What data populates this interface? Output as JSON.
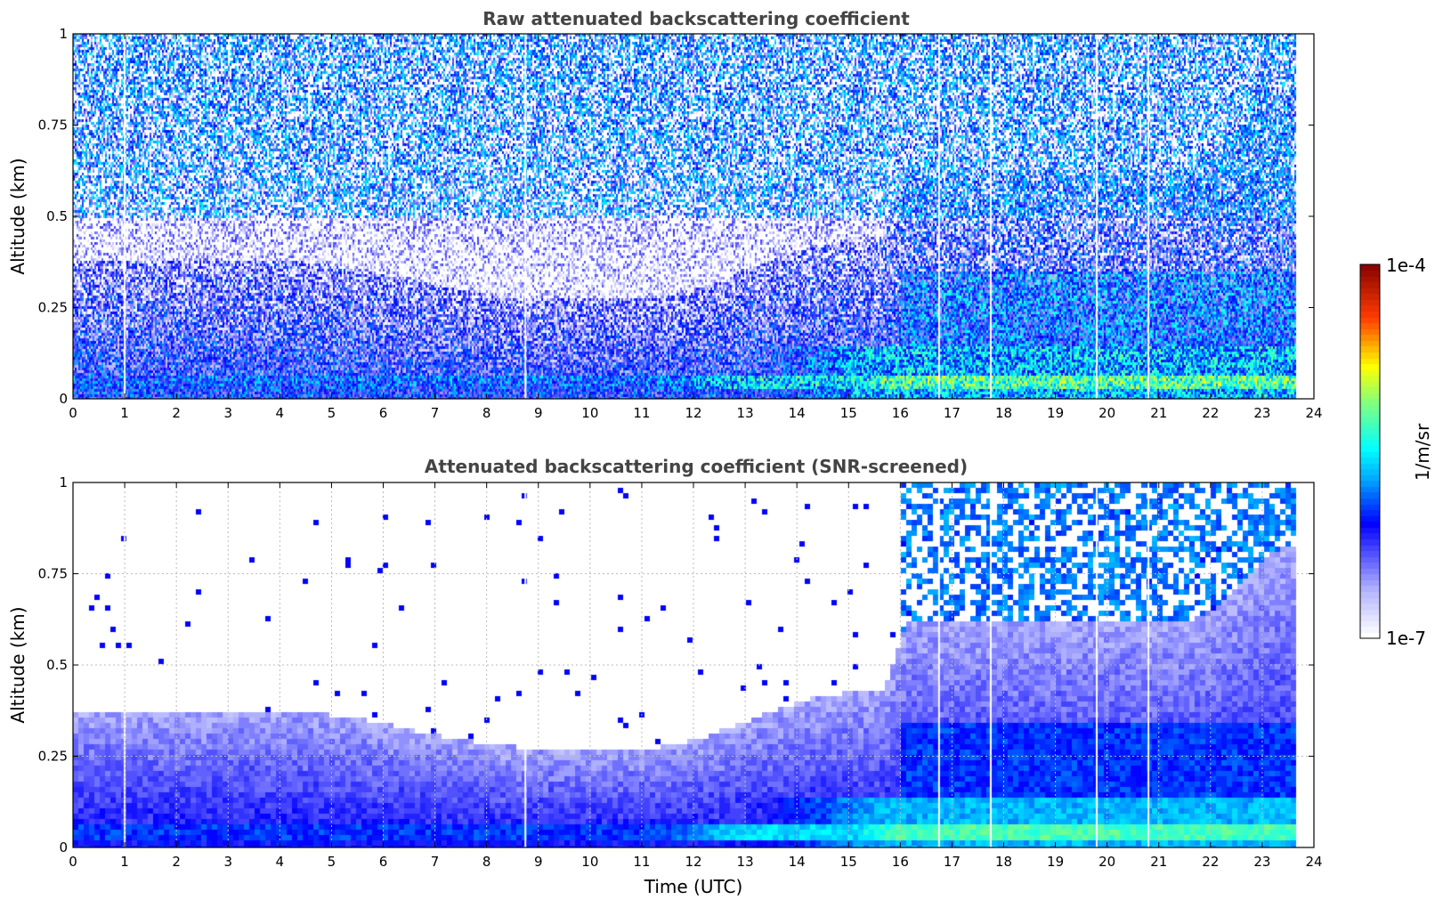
{
  "chart_data": [
    {
      "type": "heatmap",
      "title": "Raw attenuated backscattering coefficient",
      "xlabel": "",
      "ylabel": "Altitude (km)",
      "xlim": [
        0,
        24
      ],
      "ylim": [
        0,
        1
      ],
      "xticks": [
        "0",
        "1",
        "2",
        "3",
        "4",
        "5",
        "6",
        "7",
        "8",
        "9",
        "10",
        "11",
        "12",
        "13",
        "14",
        "15",
        "16",
        "17",
        "18",
        "19",
        "20",
        "21",
        "22",
        "23",
        "24"
      ],
      "yticks": [
        "0",
        "0.25",
        "0.5",
        "0.75",
        "1"
      ],
      "ytick_values": [
        0,
        0.25,
        0.5,
        0.75,
        1
      ],
      "grid": false,
      "data_end_hour": 23.65,
      "gap_hours": [
        1.0,
        8.75,
        16.75,
        17.75,
        19.8,
        20.8
      ],
      "profile_levels": [
        {
          "hour_start": 0,
          "hour_end": 11,
          "altitude_km": 0.05,
          "log10_value": -6.0
        },
        {
          "hour_start": 11,
          "hour_end": 15,
          "altitude_km": 0.05,
          "log10_value": -5.8
        },
        {
          "hour_start": 15,
          "hour_end": 23.65,
          "altitude_km": 0.05,
          "log10_value": -5.4
        }
      ]
    },
    {
      "type": "heatmap",
      "title": "Attenuated backscattering coefficient (SNR-screened)",
      "xlabel": "Time (UTC)",
      "ylabel": "Altitude (km)",
      "xlim": [
        0,
        24
      ],
      "ylim": [
        0,
        1
      ],
      "xticks": [
        "0",
        "1",
        "2",
        "3",
        "4",
        "5",
        "6",
        "7",
        "8",
        "9",
        "10",
        "11",
        "12",
        "13",
        "14",
        "15",
        "16",
        "17",
        "18",
        "19",
        "20",
        "21",
        "22",
        "23",
        "24"
      ],
      "yticks": [
        "0",
        "0.25",
        "0.5",
        "0.75",
        "1"
      ],
      "ytick_values": [
        0,
        0.25,
        0.5,
        0.75,
        1
      ],
      "grid": true,
      "data_end_hour": 23.65,
      "gap_hours": [
        1.0,
        8.75,
        16.75,
        17.75,
        19.8,
        20.8
      ]
    }
  ],
  "colorbar": {
    "label": "1/m/sr",
    "min_label": "1e-7",
    "max_label": "1e-4",
    "min_value": 1e-07,
    "max_value": 0.0001,
    "scale": "log",
    "colormap": "jet-white",
    "colors": [
      "#ffffff",
      "#0000ff",
      "#00ffff",
      "#ffff00",
      "#ff0000",
      "#800000"
    ]
  }
}
